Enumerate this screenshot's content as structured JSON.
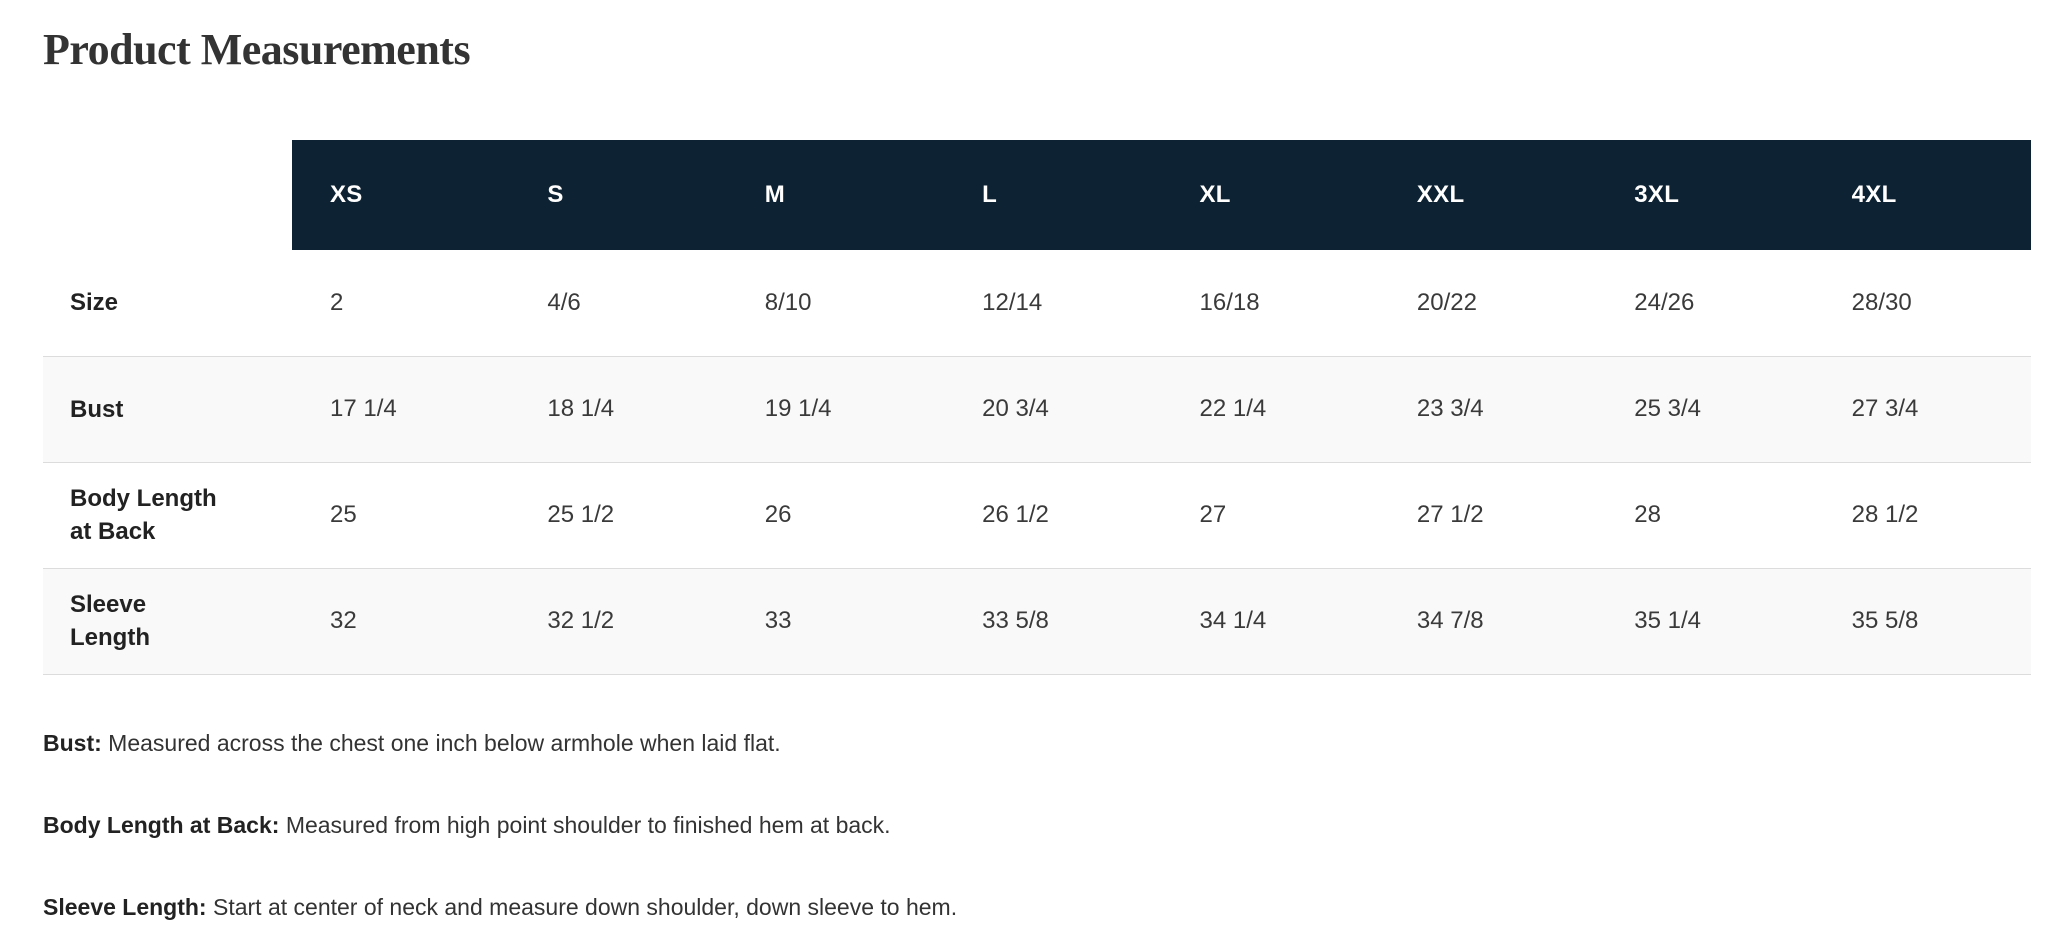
{
  "section": {
    "title": "Product Measurements"
  },
  "table": {
    "columns": [
      "XS",
      "S",
      "M",
      "L",
      "XL",
      "XXL",
      "3XL",
      "4XL"
    ],
    "rows": [
      {
        "label": "Size",
        "values": [
          "2",
          "4/6",
          "8/10",
          "12/14",
          "16/18",
          "20/22",
          "24/26",
          "28/30"
        ]
      },
      {
        "label": "Bust",
        "values": [
          "17 1/4",
          "18 1/4",
          "19 1/4",
          "20 3/4",
          "22 1/4",
          "23 3/4",
          "25 3/4",
          "27 3/4"
        ]
      },
      {
        "label": "Body Length\nat Back",
        "values": [
          "25",
          "25 1/2",
          "26",
          "26 1/2",
          "27",
          "27 1/2",
          "28",
          "28 1/2"
        ]
      },
      {
        "label": "Sleeve\nLength",
        "values": [
          "32",
          "32 1/2",
          "33",
          "33 5/8",
          "34 1/4",
          "34 7/8",
          "35 1/4",
          "35 5/8"
        ]
      }
    ]
  },
  "notes": [
    {
      "term": "Bust:",
      "description": "Measured across the chest one inch below armhole when laid flat."
    },
    {
      "term": "Body Length at Back:",
      "description": "Measured from high point shoulder to finished hem at back."
    },
    {
      "term": "Sleeve Length:",
      "description": "Start at center of neck and measure down shoulder, down sleeve to hem."
    }
  ],
  "colors": {
    "header_background": "#0d2334",
    "header_text": "#ffffff",
    "stripe_background": "#f9f9f9",
    "divider": "#dcdcdc",
    "body_text": "#3a3a3a",
    "title_text": "#333333"
  }
}
